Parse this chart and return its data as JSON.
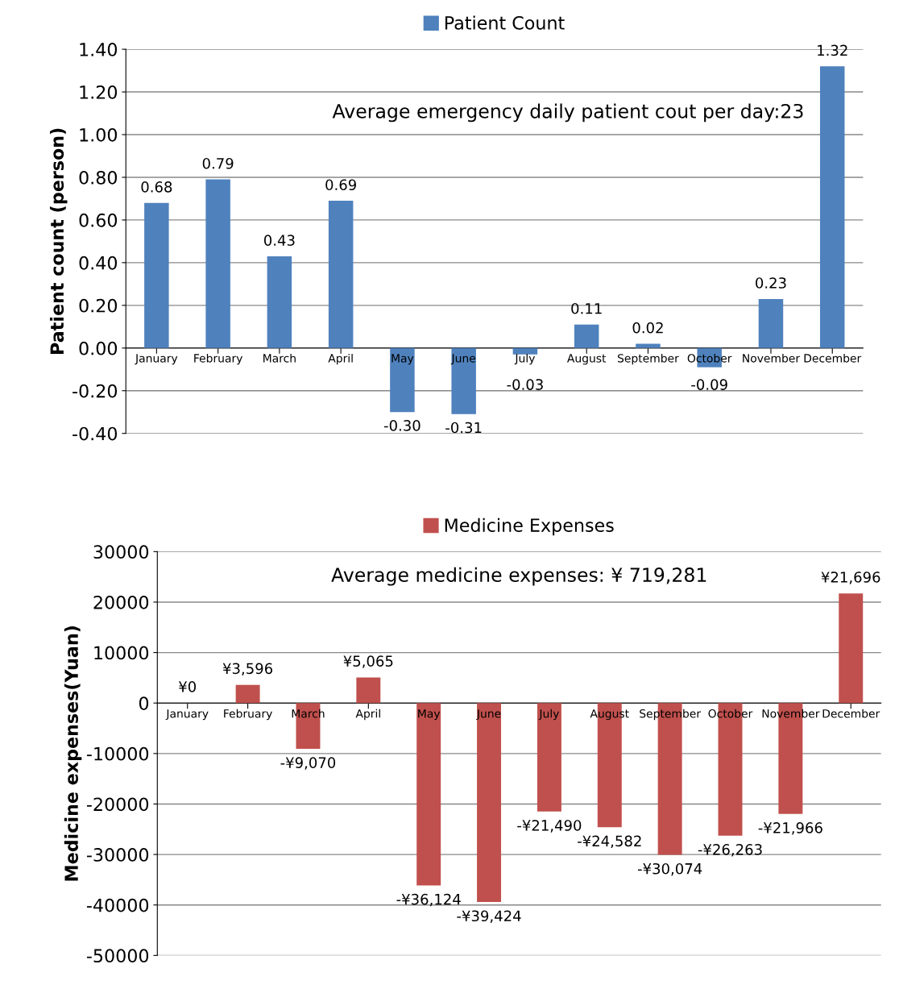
{
  "chart_data": [
    {
      "type": "bar",
      "ylabel": "Patient count (person)",
      "categories": [
        "January",
        "February",
        "March",
        "April",
        "May",
        "June",
        "July",
        "August",
        "September",
        "October",
        "November",
        "December"
      ],
      "series": [
        {
          "name": "Patient Count",
          "color": "#4f81bd",
          "values": [
            0.68,
            0.79,
            0.43,
            0.69,
            -0.3,
            -0.31,
            -0.03,
            0.11,
            0.02,
            -0.09,
            0.23,
            1.32
          ]
        }
      ],
      "value_labels": [
        "0.68",
        "0.79",
        "0.43",
        "0.69",
        "-0.30",
        "-0.31",
        "-0.03",
        "0.11",
        "0.02",
        "-0.09",
        "0.23",
        "1.32"
      ],
      "ylim": [
        -0.4,
        1.4
      ],
      "yticks": [
        {
          "value": -0.4,
          "label": "-0.40"
        },
        {
          "value": -0.2,
          "label": "-0.20"
        },
        {
          "value": 0,
          "label": "0.00"
        },
        {
          "value": 0.2,
          "label": "0.20"
        },
        {
          "value": 0.4,
          "label": "0.40"
        },
        {
          "value": 0.6,
          "label": "0.60"
        },
        {
          "value": 0.8,
          "label": "0.80"
        },
        {
          "value": 1.0,
          "label": "1.00"
        },
        {
          "value": 1.2,
          "label": "1.20"
        },
        {
          "value": 1.4,
          "label": "1.40"
        }
      ],
      "annotations": [
        "Average emergency daily patient cout per day:23"
      ],
      "grid": "y",
      "legend": "top"
    },
    {
      "type": "bar",
      "ylabel": "Medicine expenses(Yuan)",
      "categories": [
        "January",
        "February",
        "March",
        "April",
        "May",
        "June",
        "July",
        "August",
        "September",
        "October",
        "November",
        "December"
      ],
      "series": [
        {
          "name": "Medicine Expenses",
          "color": "#c0504d",
          "values": [
            0,
            3596,
            -9070,
            5065,
            -36124,
            -39424,
            -21490,
            -24582,
            -30074,
            -26263,
            -21966,
            21696
          ]
        }
      ],
      "value_labels": [
        "¥0",
        "¥3,596",
        "-¥9,070",
        "¥5,065",
        "-¥36,124",
        "-¥39,424",
        "-¥21,490",
        "-¥24,582",
        "-¥30,074",
        "-¥26,263",
        "-¥21,966",
        "¥21,696"
      ],
      "ylim": [
        -50000,
        30000
      ],
      "yticks": [
        -50000,
        -40000,
        -30000,
        -20000,
        -10000,
        0,
        10000,
        20000,
        30000
      ],
      "annotations": [
        "Average medicine expenses: ¥ 719,281"
      ],
      "grid": "y",
      "legend": "top"
    }
  ]
}
